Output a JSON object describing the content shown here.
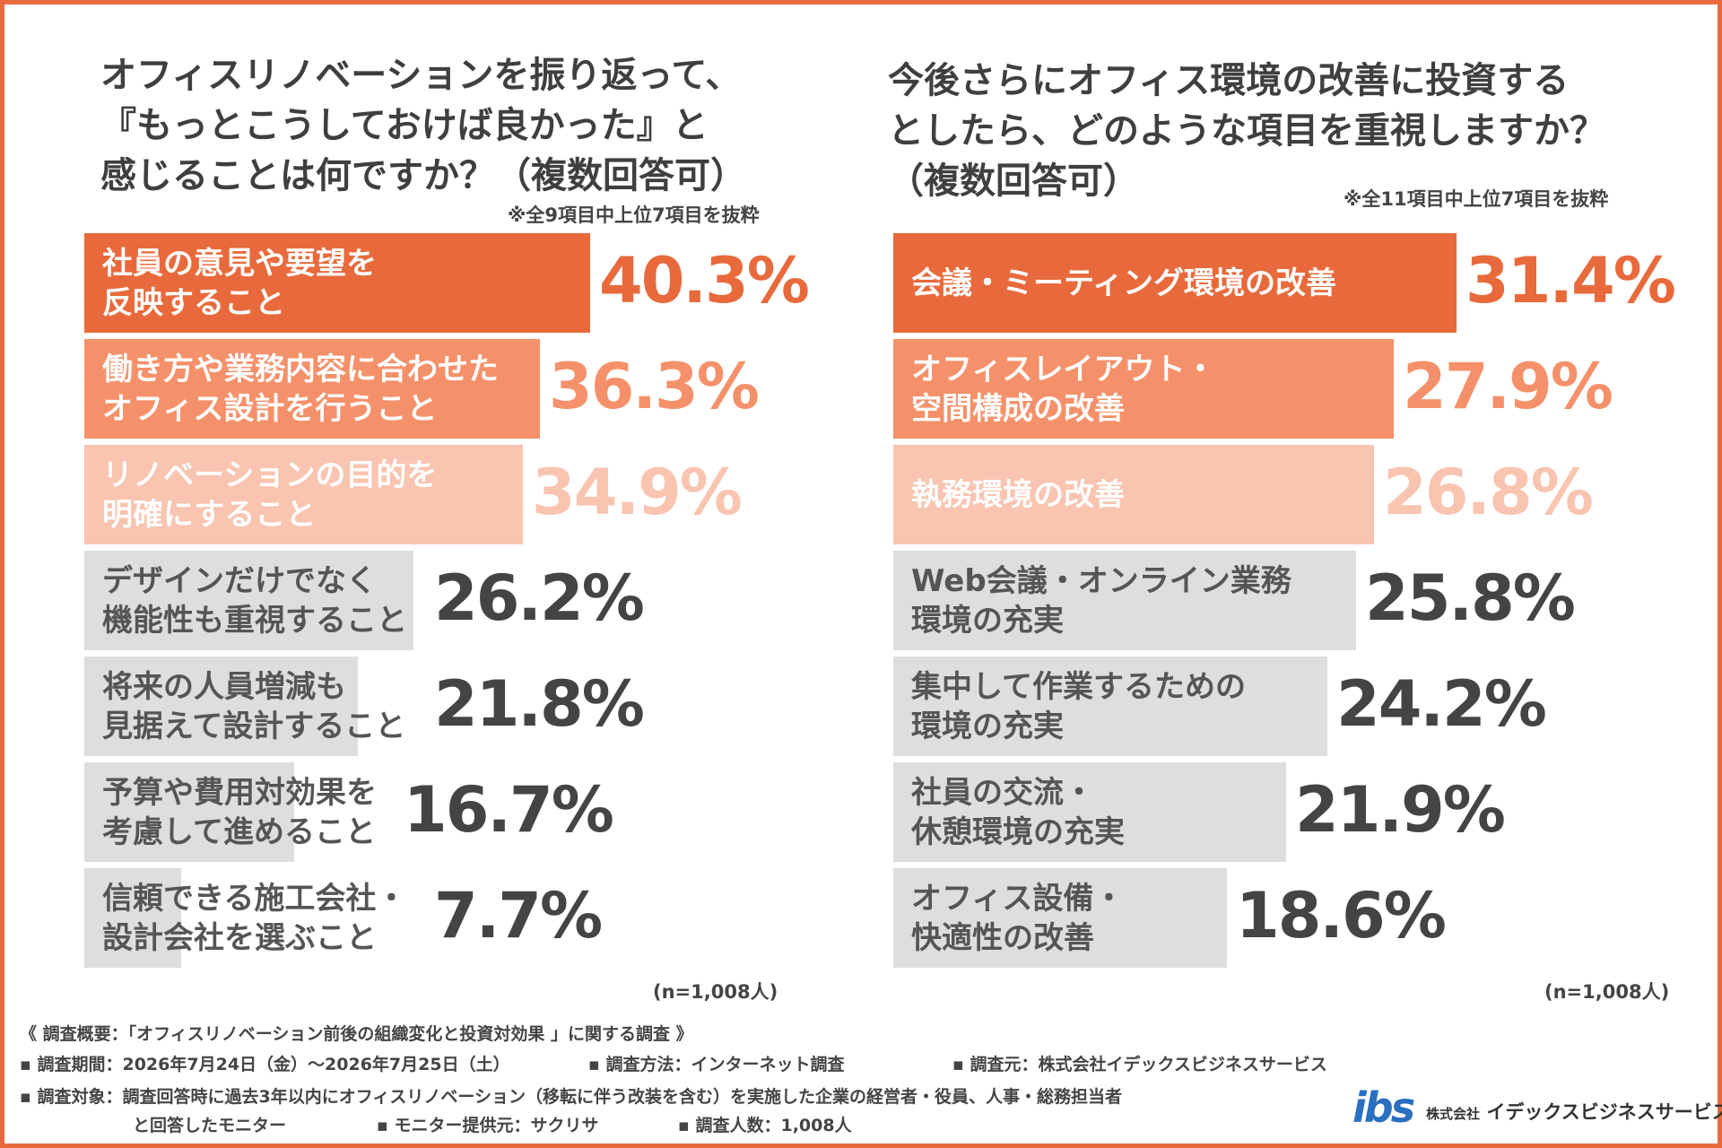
{
  "colors": {
    "frame": "#e86a3c",
    "rank1": "#e86a3c",
    "rank2": "#f5916a",
    "rank3": "#f9c4b0",
    "other": "#dedede",
    "value_other": "#444444",
    "label_light": "#ffffff",
    "label_dark": "#555555"
  },
  "left": {
    "title_lines": [
      "オフィスリノベーションを振り返って、",
      "『もっとこうしておけば良かった』と",
      "感じることは何ですか？（複数回答可）"
    ],
    "note": "※全9項目中上位7項目を抜粋",
    "n_label": "(n=1,008人)"
  },
  "right": {
    "title_lines": [
      "今後さらにオフィス環境の改善に投資する",
      "としたら、どのような項目を重視しますか？",
      "（複数回答可）"
    ],
    "note": "※全11項目中上位7項目を抜粋",
    "n_label": "(n=1,008人)"
  },
  "chart_data": [
    {
      "type": "bar",
      "orientation": "horizontal",
      "title": "オフィスリノベーションを振り返って、『もっとこうしておけば良かった』と感じることは何ですか？（複数回答可）",
      "unit": "%",
      "categories": [
        [
          "社員の意見や要望を",
          "反映すること"
        ],
        [
          "働き方や業務内容に合わせた",
          "オフィス設計を行うこと"
        ],
        [
          "リノベーションの目的を",
          "明確にすること"
        ],
        [
          "デザインだけでなく",
          "機能性も重視すること"
        ],
        [
          "将来の人員増減も",
          "見据えて設計すること"
        ],
        [
          "予算や費用対効果を",
          "考慮して進めること"
        ],
        [
          "信頼できる施工会社・",
          "設計会社を選ぶこと"
        ]
      ],
      "values": [
        40.3,
        36.3,
        34.9,
        26.2,
        21.8,
        16.7,
        7.7
      ],
      "value_labels": [
        "40.3%",
        "36.3%",
        "34.9%",
        "26.2%",
        "21.8%",
        "16.7%",
        "7.7%"
      ]
    },
    {
      "type": "bar",
      "orientation": "horizontal",
      "title": "今後さらにオフィス環境の改善に投資するとしたら、どのような項目を重視しますか？（複数回答可）",
      "unit": "%",
      "categories": [
        [
          "会議・ミーティング環境の改善"
        ],
        [
          "オフィスレイアウト・",
          "空間構成の改善"
        ],
        [
          "執務環境の改善"
        ],
        [
          "Web会議・オンライン業務",
          "環境の充実"
        ],
        [
          "集中して作業するための",
          "環境の充実"
        ],
        [
          "社員の交流・",
          "休憩環境の充実"
        ],
        [
          "オフィス設備・",
          "快適性の改善"
        ]
      ],
      "values": [
        31.4,
        27.9,
        26.8,
        25.8,
        24.2,
        21.9,
        18.6
      ],
      "value_labels": [
        "31.4%",
        "27.9%",
        "26.8%",
        "25.8%",
        "24.2%",
        "21.9%",
        "18.6%"
      ]
    }
  ],
  "footer": {
    "line1": "《 調査概要：「オフィスリノベーション前後の組織変化と投資対効果 」に関する調査 》",
    "period": "▪ 調査期間：2026年7月24日（金）〜2026年7月25日（土）",
    "method": "▪ 調査方法：インターネット調査",
    "source": "▪ 調査元：株式会社イデックスビジネスサービス",
    "target": "▪ 調査対象：調査回答時に過去3年以内にオフィスリノベーション（移転に伴う改装を含む）を実施した企業の経営者・役員、人事・総務担当者",
    "target_cont": "と回答したモニター",
    "provider": "▪ モニター提供元：サクリサ",
    "count": "▪ 調査人数：1,008人"
  },
  "logo": {
    "mark": "ibs",
    "prefix": "株式会社",
    "name": "イデックスビジネスサービス"
  }
}
